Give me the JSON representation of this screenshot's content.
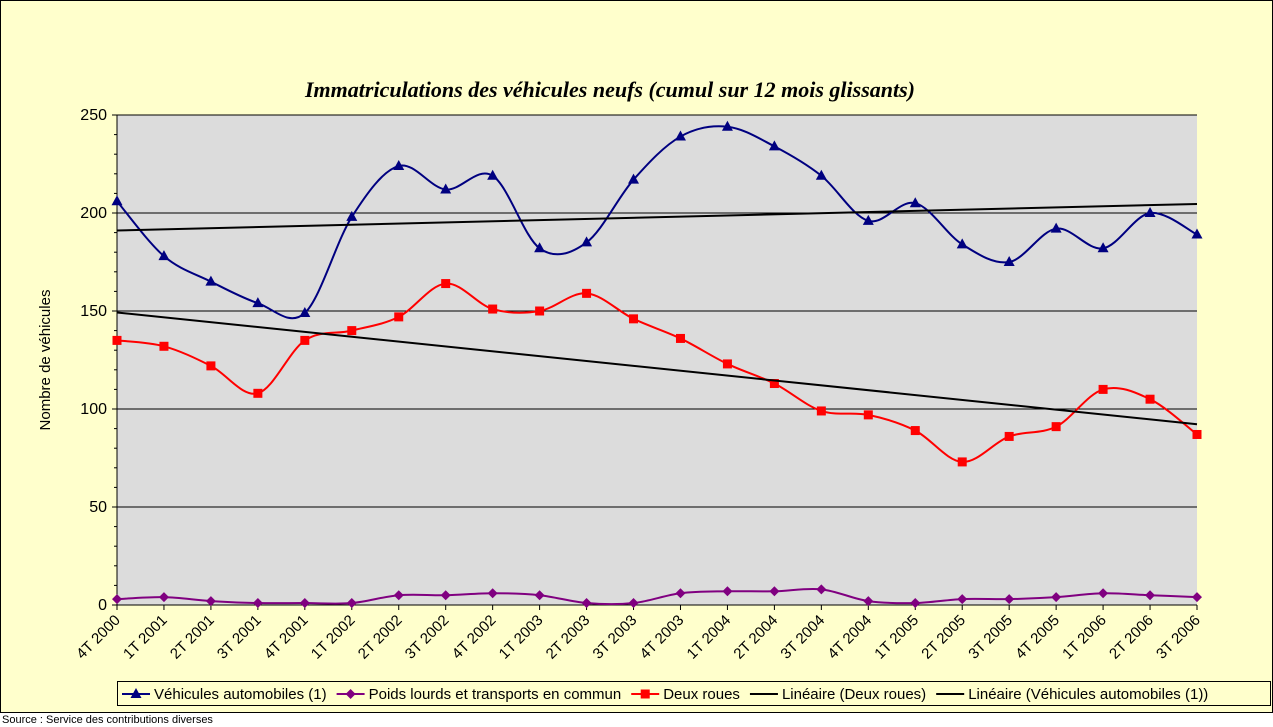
{
  "chart_data": {
    "type": "line",
    "title": "Immatriculations des véhicules neufs (cumul sur 12 mois glissants)",
    "y_label": "Nombre de véhicules",
    "source": "Source : Service des contributions diverses",
    "categories": [
      "4T 2000",
      "1T 2001",
      "2T 2001",
      "3T 2001",
      "4T 2001",
      "1T 2002",
      "2T 2002",
      "3T 2002",
      "4T 2002",
      "1T 2003",
      "2T 2003",
      "3T 2003",
      "4T 2003",
      "1T 2004",
      "2T 2004",
      "3T 2004",
      "4T 2004",
      "1T 2005",
      "2T 2005",
      "3T 2005",
      "4T 2005",
      "1T 2006",
      "2T 2006",
      "3T 2006"
    ],
    "series": [
      {
        "name": "Véhicules automobiles (1)",
        "color": "#000080",
        "marker": "triangle",
        "values": [
          206,
          178,
          165,
          154,
          149,
          198,
          224,
          212,
          219,
          182,
          185,
          217,
          239,
          244,
          234,
          219,
          196,
          205,
          184,
          175,
          192,
          182,
          200,
          189
        ]
      },
      {
        "name": "Poids lourds et transports en commun",
        "color": "#800080",
        "marker": "diamond",
        "values": [
          3,
          4,
          2,
          1,
          1,
          1,
          5,
          5,
          6,
          5,
          1,
          1,
          6,
          7,
          7,
          8,
          2,
          1,
          3,
          3,
          4,
          6,
          5,
          4
        ]
      },
      {
        "name": "Deux roues",
        "color": "#ff0000",
        "marker": "square",
        "values": [
          135,
          132,
          122,
          108,
          135,
          140,
          147,
          164,
          151,
          150,
          159,
          146,
          136,
          123,
          113,
          99,
          97,
          89,
          73,
          86,
          91,
          110,
          105,
          87
        ]
      },
      {
        "name": "Linéaire (Deux roues)",
        "color": "#000000",
        "trend": "linear",
        "of": "Deux roues"
      },
      {
        "name": "Linéaire (Véhicules automobiles (1))",
        "color": "#000000",
        "trend": "linear",
        "of": "Véhicules automobiles (1)"
      }
    ],
    "ylim": [
      0,
      250
    ],
    "yticks": [
      0,
      50,
      100,
      150,
      200,
      250
    ],
    "grid": true,
    "legend": "bottom"
  }
}
